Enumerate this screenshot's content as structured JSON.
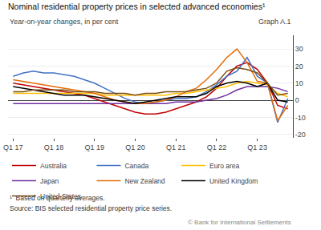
{
  "chart_data": {
    "type": "line",
    "title": "Nominal residential property prices in selected advanced economies¹",
    "subtitle": "Year-on-year changes, in per cent",
    "annotations": [
      "Graph A.1",
      "¹  Based on quarterly averages.",
      "Source: BIS selected residential property price series.",
      "© Bank for International Settlements"
    ],
    "categories": [
      "Q1 17",
      null,
      null,
      null,
      "Q1 18",
      null,
      null,
      null,
      "Q1 19",
      null,
      null,
      null,
      "Q1 20",
      null,
      null,
      null,
      "Q1 21",
      null,
      null,
      null,
      "Q1 22",
      null,
      null,
      null,
      "Q1 23",
      null,
      null,
      null
    ],
    "series": [
      {
        "name": "Australia",
        "color": "#c00000",
        "values": [
          10,
          9,
          8,
          7,
          6,
          5,
          4,
          3,
          1,
          -1,
          -3,
          -5,
          -7,
          -8,
          -8,
          -7,
          -5,
          -3,
          -1,
          2,
          7,
          14,
          20,
          22,
          18,
          10,
          -3,
          -5
        ]
      },
      {
        "name": "Canada",
        "color": "#4472c4",
        "values": [
          14,
          16,
          17,
          16,
          16,
          15,
          14,
          12,
          10,
          7,
          4,
          1,
          -1,
          -2,
          -1,
          0,
          1,
          1,
          2,
          5,
          9,
          14,
          17,
          25,
          14,
          10,
          -13,
          1
        ]
      },
      {
        "name": "Euro area",
        "color": "#ffc000",
        "values": [
          4,
          4,
          4,
          4,
          4,
          4,
          4,
          4,
          4,
          3,
          3,
          3,
          3,
          3,
          3,
          3,
          4,
          4,
          5,
          6,
          7,
          8,
          10,
          11,
          10,
          9,
          4,
          2
        ]
      },
      {
        "name": "Japan",
        "color": "#7030a0",
        "values": [
          -2,
          -2,
          -2,
          -2,
          -2,
          -2,
          -2,
          -2,
          -2,
          -2,
          -2,
          -2,
          -2,
          -2,
          -2,
          -2,
          -1,
          -1,
          -1,
          0,
          1,
          3,
          6,
          8,
          8,
          8,
          7,
          5
        ]
      },
      {
        "name": "New Zealand",
        "color": "#e36c09",
        "values": [
          12,
          11,
          10,
          9,
          8,
          7,
          6,
          5,
          4,
          2,
          0,
          -1,
          -2,
          -2,
          -1,
          0,
          2,
          5,
          7,
          12,
          18,
          25,
          30,
          22,
          11,
          10,
          -12,
          -3
        ]
      },
      {
        "name": "United Kingdom",
        "color": "#000000",
        "values": [
          8,
          7,
          6,
          5,
          4,
          3,
          3,
          3,
          2,
          1,
          0,
          -1,
          -2,
          -1,
          0,
          1,
          2,
          2,
          2,
          4,
          8,
          10,
          11,
          10,
          8,
          10,
          0,
          -1
        ]
      },
      {
        "name": "United States",
        "color": "#7b4d12",
        "values": [
          5,
          5,
          6,
          6,
          6,
          6,
          5,
          5,
          5,
          4,
          4,
          4,
          3,
          4,
          4,
          5,
          5,
          5,
          6,
          7,
          10,
          17,
          19,
          18,
          16,
          10,
          3,
          4
        ]
      }
    ],
    "ylim": [
      -22,
      38
    ],
    "yticks": [
      -20,
      -10,
      0,
      10,
      20,
      30
    ],
    "grid": true,
    "legend": "bottom"
  }
}
